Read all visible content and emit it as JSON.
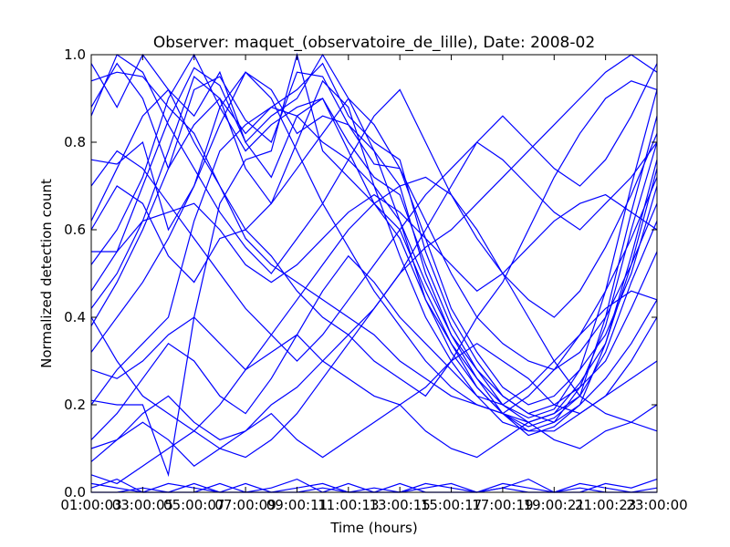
{
  "chart_data": {
    "type": "line",
    "title": "Observer: maquet_(observatoire_de_lille), Date: 2008-02",
    "xlabel": "Time (hours)",
    "ylabel": "Normalized detection count",
    "x": [
      1,
      2,
      3,
      4,
      5,
      6,
      7,
      8,
      9,
      10,
      11,
      12,
      13,
      14,
      15,
      16,
      17,
      18,
      19,
      20,
      21,
      22,
      23
    ],
    "xlim": [
      1,
      23
    ],
    "ylim": [
      0,
      1
    ],
    "xticks": [
      1,
      3,
      5,
      7,
      9,
      11,
      13,
      15,
      17,
      19,
      21,
      23
    ],
    "xtick_labels": [
      "01:00:03",
      "03:00:05",
      "05:00:07",
      "07:00:09",
      "09:00:11",
      "11:00:13",
      "13:00:15",
      "15:00:17",
      "17:00:19",
      "19:00:21",
      "21:00:23",
      "23:00:00"
    ],
    "yticks": [
      0,
      0.2,
      0.4,
      0.6,
      0.8,
      1.0
    ],
    "ytick_labels": [
      "0.0",
      "0.2",
      "0.4",
      "0.6",
      "0.8",
      "1.0"
    ],
    "line_color": "#0000ff",
    "grid": false,
    "legend": "none",
    "series": [
      {
        "values": [
          0.42,
          0.5,
          0.62,
          0.78,
          0.95,
          0.9,
          0.82,
          0.88,
          0.92,
          0.98,
          0.86,
          0.8,
          0.76,
          0.55,
          0.4,
          0.3,
          0.22,
          0.18,
          0.2,
          0.24,
          0.3,
          0.42,
          0.55
        ]
      },
      {
        "values": [
          0.46,
          0.55,
          0.7,
          0.85,
          0.97,
          0.93,
          0.8,
          0.86,
          0.9,
          1.0,
          0.9,
          0.78,
          0.7,
          0.5,
          0.36,
          0.26,
          0.18,
          0.15,
          0.17,
          0.22,
          0.32,
          0.48,
          0.62
        ]
      },
      {
        "values": [
          0.38,
          0.48,
          0.6,
          0.74,
          0.92,
          0.95,
          0.85,
          0.8,
          0.96,
          0.95,
          0.84,
          0.75,
          0.74,
          0.58,
          0.42,
          0.32,
          0.24,
          0.2,
          0.22,
          0.28,
          0.36,
          0.5,
          0.7
        ]
      },
      {
        "values": [
          0.52,
          0.6,
          0.72,
          0.9,
          1.0,
          0.88,
          0.78,
          0.84,
          0.88,
          0.9,
          0.8,
          0.72,
          0.68,
          0.52,
          0.38,
          0.28,
          0.2,
          0.16,
          0.18,
          0.25,
          0.34,
          0.52,
          0.74
        ]
      },
      {
        "values": [
          0.2,
          0.28,
          0.34,
          0.4,
          0.62,
          0.78,
          0.84,
          0.88,
          0.86,
          0.8,
          0.76,
          0.7,
          0.62,
          0.48,
          0.36,
          0.28,
          0.22,
          0.18,
          0.16,
          0.2,
          0.26,
          0.34,
          0.44
        ]
      },
      {
        "values": [
          0.94,
          0.96,
          0.95,
          0.88,
          0.82,
          0.7,
          0.58,
          0.52,
          0.48,
          0.44,
          0.4,
          0.36,
          0.3,
          0.26,
          0.22,
          0.2,
          0.18,
          0.16,
          0.18,
          0.22,
          0.4,
          0.64,
          0.86
        ]
      },
      {
        "values": [
          0.98,
          0.88,
          1.0,
          0.92,
          0.86,
          0.96,
          0.8,
          0.72,
          0.86,
          0.9,
          0.78,
          0.66,
          0.58,
          0.44,
          0.32,
          0.24,
          0.18,
          0.13,
          0.15,
          0.2,
          0.34,
          0.54,
          0.76
        ]
      },
      {
        "values": [
          0.88,
          0.98,
          0.9,
          0.74,
          0.84,
          0.9,
          0.74,
          0.66,
          0.8,
          0.94,
          0.88,
          0.7,
          0.54,
          0.4,
          0.3,
          0.22,
          0.16,
          0.14,
          0.16,
          0.24,
          0.38,
          0.6,
          0.8
        ]
      },
      {
        "values": [
          0.76,
          0.75,
          0.8,
          0.6,
          0.7,
          0.88,
          0.96,
          0.92,
          0.82,
          0.86,
          0.84,
          0.78,
          0.62,
          0.44,
          0.34,
          0.26,
          0.2,
          0.17,
          0.19,
          0.28,
          0.46,
          0.7,
          0.92
        ]
      },
      {
        "values": [
          0.21,
          0.2,
          0.2,
          0.04,
          0.4,
          0.66,
          0.76,
          0.78,
          1.0,
          0.78,
          0.72,
          0.66,
          0.6,
          0.46,
          0.34,
          0.24,
          0.18,
          0.14,
          0.14,
          0.18,
          0.22,
          0.3,
          0.4
        ]
      },
      {
        "values": [
          0.6,
          0.7,
          0.66,
          0.54,
          0.48,
          0.58,
          0.6,
          0.54,
          0.46,
          0.4,
          0.36,
          0.3,
          0.26,
          0.22,
          0.3,
          0.4,
          0.48,
          0.6,
          0.72,
          0.82,
          0.9,
          0.94,
          0.92
        ]
      },
      {
        "values": [
          0.1,
          0.12,
          0.18,
          0.22,
          0.16,
          0.12,
          0.14,
          0.2,
          0.24,
          0.3,
          0.36,
          0.42,
          0.5,
          0.6,
          0.7,
          0.8,
          0.86,
          0.8,
          0.74,
          0.7,
          0.76,
          0.86,
          0.98
        ]
      },
      {
        "values": [
          0.01,
          0.03,
          0.0,
          0.0,
          0.02,
          0.0,
          0.0,
          0.01,
          0.03,
          0.0,
          0.02,
          0.0,
          0.0,
          0.01,
          0.02,
          0.0,
          0.01,
          0.03,
          0.0,
          0.0,
          0.02,
          0.01,
          0.03
        ]
      },
      {
        "values": [
          0.0,
          0.0,
          0.01,
          0.0,
          0.0,
          0.02,
          0.0,
          0.0,
          0.0,
          0.01,
          0.0,
          0.0,
          0.02,
          0.0,
          0.0,
          0.0,
          0.01,
          0.0,
          0.0,
          0.01,
          0.0,
          0.0,
          0.0
        ]
      },
      {
        "values": [
          0.02,
          0.01,
          0.0,
          0.02,
          0.01,
          0.0,
          0.02,
          0.0,
          0.01,
          0.02,
          0.0,
          0.01,
          0.0,
          0.02,
          0.01,
          0.0,
          0.02,
          0.01,
          0.0,
          0.02,
          0.01,
          0.0,
          0.01
        ]
      },
      {
        "values": [
          0.07,
          0.12,
          0.16,
          0.12,
          0.06,
          0.1,
          0.14,
          0.18,
          0.12,
          0.08,
          0.12,
          0.16,
          0.2,
          0.14,
          0.1,
          0.08,
          0.12,
          0.16,
          0.12,
          0.1,
          0.14,
          0.16,
          0.14
        ]
      },
      {
        "values": [
          0.28,
          0.26,
          0.3,
          0.36,
          0.4,
          0.34,
          0.28,
          0.32,
          0.36,
          0.3,
          0.26,
          0.22,
          0.2,
          0.24,
          0.3,
          0.34,
          0.3,
          0.26,
          0.2,
          0.18,
          0.22,
          0.26,
          0.3
        ]
      },
      {
        "values": [
          0.55,
          0.55,
          0.62,
          0.64,
          0.66,
          0.6,
          0.52,
          0.48,
          0.52,
          0.58,
          0.64,
          0.68,
          0.64,
          0.58,
          0.52,
          0.46,
          0.5,
          0.56,
          0.62,
          0.66,
          0.68,
          0.64,
          0.6
        ]
      },
      {
        "values": [
          0.12,
          0.18,
          0.26,
          0.34,
          0.3,
          0.22,
          0.18,
          0.26,
          0.36,
          0.46,
          0.54,
          0.48,
          0.4,
          0.34,
          0.28,
          0.22,
          0.2,
          0.24,
          0.3,
          0.36,
          0.42,
          0.46,
          0.44
        ]
      },
      {
        "values": [
          0.7,
          0.78,
          0.74,
          0.66,
          0.58,
          0.5,
          0.42,
          0.36,
          0.3,
          0.36,
          0.44,
          0.52,
          0.6,
          0.68,
          0.74,
          0.8,
          0.76,
          0.7,
          0.64,
          0.6,
          0.66,
          0.72,
          0.8
        ]
      },
      {
        "values": [
          0.86,
          1.0,
          0.96,
          0.84,
          0.74,
          0.64,
          0.56,
          0.5,
          0.58,
          0.66,
          0.76,
          0.86,
          0.92,
          0.8,
          0.68,
          0.58,
          0.5,
          0.44,
          0.4,
          0.46,
          0.56,
          0.68,
          0.82
        ]
      },
      {
        "values": [
          0.4,
          0.3,
          0.22,
          0.18,
          0.14,
          0.1,
          0.08,
          0.12,
          0.18,
          0.26,
          0.34,
          0.42,
          0.5,
          0.56,
          0.6,
          0.66,
          0.72,
          0.78,
          0.84,
          0.9,
          0.96,
          1.0,
          0.96
        ]
      },
      {
        "values": [
          0.04,
          0.02,
          0.06,
          0.1,
          0.14,
          0.2,
          0.28,
          0.36,
          0.44,
          0.52,
          0.6,
          0.66,
          0.7,
          0.72,
          0.68,
          0.6,
          0.5,
          0.4,
          0.3,
          0.22,
          0.18,
          0.16,
          0.2
        ]
      },
      {
        "values": [
          0.62,
          0.74,
          0.86,
          0.92,
          0.8,
          0.7,
          0.6,
          0.66,
          0.74,
          0.82,
          0.9,
          0.84,
          0.74,
          0.62,
          0.5,
          0.4,
          0.34,
          0.3,
          0.28,
          0.32,
          0.4,
          0.52,
          0.66
        ]
      },
      {
        "values": [
          0.32,
          0.4,
          0.48,
          0.58,
          0.7,
          0.84,
          0.96,
          0.9,
          0.78,
          0.66,
          0.56,
          0.46,
          0.38,
          0.3,
          0.24,
          0.2,
          0.18,
          0.22,
          0.28,
          0.36,
          0.46,
          0.58,
          0.72
        ]
      }
    ]
  }
}
